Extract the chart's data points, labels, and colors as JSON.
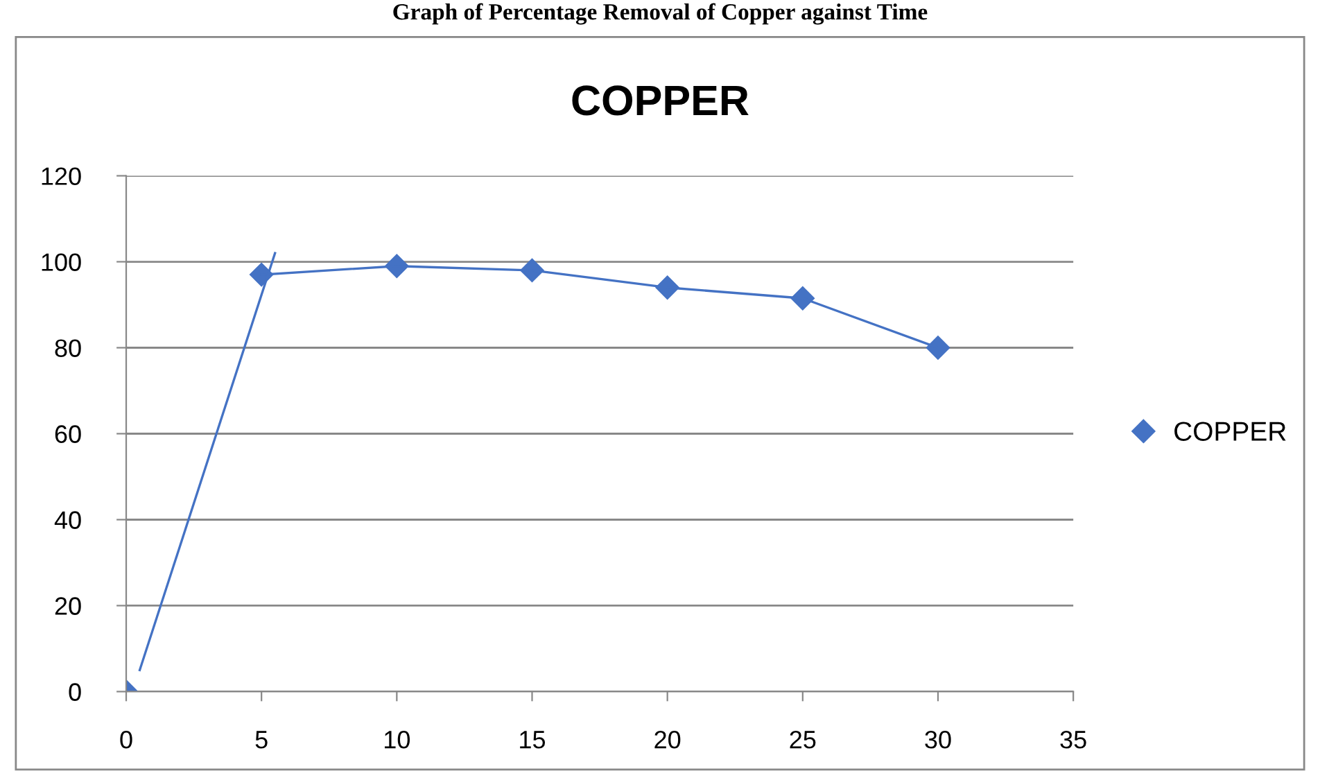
{
  "chart_data": {
    "type": "scatter",
    "title": "Graph of Percentage Removal of Copper against Time",
    "subtitle": "COPPER",
    "x": [
      0,
      5,
      10,
      15,
      20,
      25,
      30
    ],
    "series": [
      {
        "name": "COPPER",
        "type": "scatter",
        "color": "#4472c4",
        "marker": "diamond",
        "values": [
          0,
          97,
          99,
          98,
          94,
          91.5,
          80
        ]
      },
      {
        "type": "line",
        "color": "#4472c4",
        "marker": "none",
        "x": [
          5,
          10,
          15,
          20,
          25,
          30
        ],
        "values": [
          97,
          99,
          98,
          94,
          91.5,
          80
        ]
      },
      {
        "type": "line",
        "color": "#4472c4",
        "marker": "none",
        "x": [
          0.5,
          5.5
        ],
        "values": [
          5,
          102
        ]
      }
    ],
    "xlim": [
      0,
      35
    ],
    "xticks": [
      0,
      5,
      10,
      15,
      20,
      25,
      30,
      35
    ],
    "ylim": [
      0,
      120
    ],
    "yticks": [
      0,
      20,
      40,
      60,
      80,
      100,
      120
    ],
    "grid": "y",
    "legend": "right"
  }
}
